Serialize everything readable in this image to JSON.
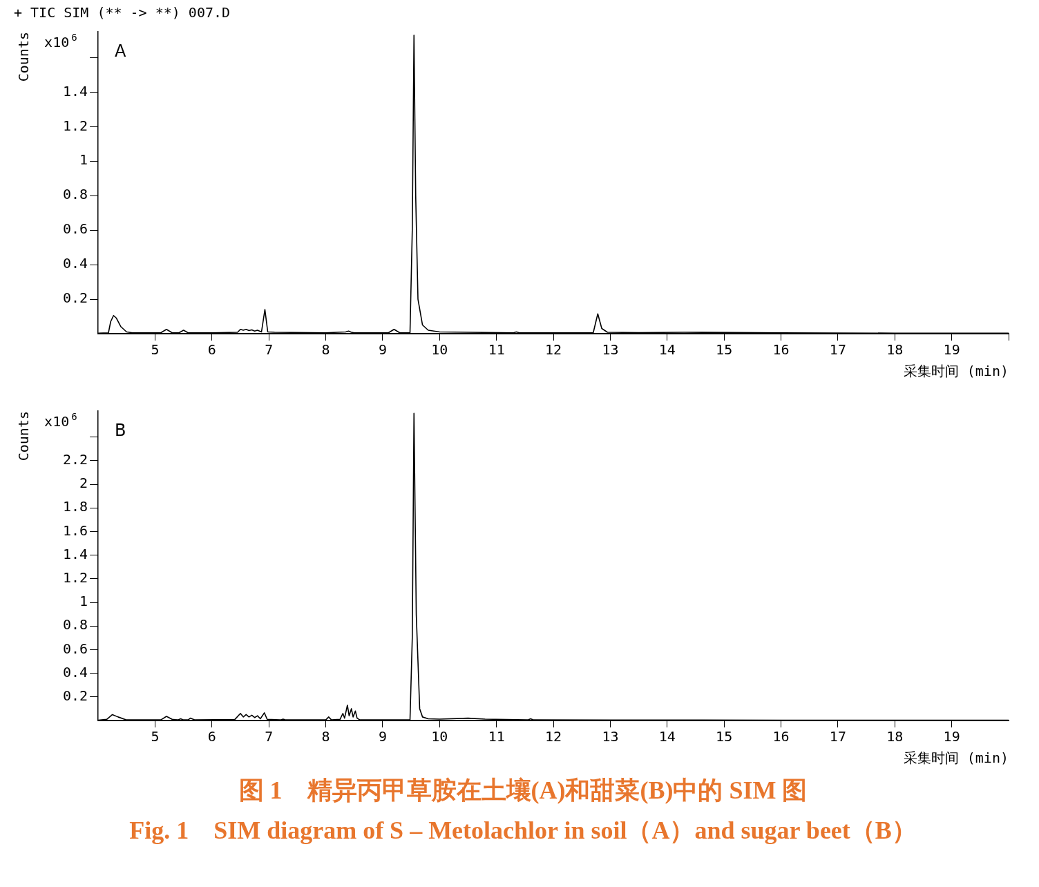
{
  "chart_data": [
    {
      "type": "line",
      "title": "+ TIC SIM (** -> **) 007.D",
      "ylabel": "Counts",
      "xlabel": "采集时间 (min)",
      "color": "#000000",
      "annotations": [
        "A",
        "x10$^{6}$"
      ],
      "x": [
        4.0,
        4.18,
        4.22,
        4.27,
        4.32,
        4.4,
        4.5,
        4.6,
        5.1,
        5.2,
        5.3,
        5.42,
        5.5,
        5.58,
        6.0,
        6.45,
        6.5,
        6.55,
        6.6,
        6.65,
        6.7,
        6.75,
        6.8,
        6.87,
        6.93,
        6.98,
        7.1,
        8.0,
        8.35,
        8.4,
        8.45,
        8.5,
        9.1,
        9.2,
        9.3,
        9.48,
        9.52,
        9.55,
        9.58,
        9.62,
        9.7,
        9.8,
        10.0,
        10.5,
        11.3,
        11.35,
        11.4,
        12.7,
        12.78,
        12.85,
        12.95,
        13.5,
        14.3,
        16,
        18,
        20
      ],
      "values": [
        0.003,
        0.005,
        0.07,
        0.105,
        0.09,
        0.04,
        0.01,
        0.005,
        0.005,
        0.025,
        0.005,
        0.005,
        0.02,
        0.005,
        0.005,
        0.008,
        0.025,
        0.02,
        0.025,
        0.018,
        0.022,
        0.015,
        0.02,
        0.01,
        0.14,
        0.01,
        0.008,
        0.005,
        0.01,
        0.015,
        0.008,
        0.005,
        0.005,
        0.025,
        0.005,
        0.005,
        0.6,
        1.73,
        0.8,
        0.2,
        0.05,
        0.02,
        0.01,
        0.008,
        0.005,
        0.01,
        0.005,
        0.005,
        0.115,
        0.03,
        0.008,
        0.006,
        0.008,
        0.005,
        0.003,
        0.003
      ],
      "xlim": [
        4,
        20
      ],
      "xticks": [
        5,
        6,
        7,
        8,
        9,
        10,
        11,
        12,
        13,
        14,
        15,
        16,
        17,
        18,
        19,
        {
          "value": 20,
          "label": null
        }
      ],
      "ylim": [
        0,
        1.75
      ],
      "yticks": [
        0.2,
        0.4,
        0.6,
        0.8,
        1,
        1.2,
        1.4,
        {
          "value": 1.6,
          "label": null
        }
      ]
    },
    {
      "type": "line",
      "ylabel": "Counts",
      "xlabel": "采集时间 (min)",
      "color": "#000000",
      "annotations": [
        "B",
        "x10$^{6}$",
        "图 1　精异丙甲草胺在土壤(A)和甜菜(B)中的 SIM 图",
        "Fig. 1　SIM diagram of S – Metolachlor in soil（A）and sugar beet（B）"
      ],
      "x": [
        4.0,
        4.15,
        4.25,
        4.35,
        4.5,
        5.1,
        5.2,
        5.3,
        5.4,
        5.45,
        5.5,
        5.58,
        5.62,
        5.7,
        6.4,
        6.5,
        6.55,
        6.6,
        6.65,
        6.7,
        6.75,
        6.8,
        6.85,
        6.92,
        6.97,
        7.2,
        7.25,
        7.3,
        8.0,
        8.05,
        8.1,
        8.25,
        8.3,
        8.33,
        8.38,
        8.41,
        8.45,
        8.48,
        8.52,
        8.55,
        8.6,
        9.48,
        9.52,
        9.55,
        9.59,
        9.65,
        9.7,
        9.8,
        10.0,
        10.5,
        10.8,
        11.55,
        11.6,
        11.65,
        13,
        16,
        20
      ],
      "values": [
        0.003,
        0.01,
        0.05,
        0.03,
        0.005,
        0.005,
        0.035,
        0.01,
        0.005,
        0.015,
        0.005,
        0.005,
        0.02,
        0.005,
        0.008,
        0.06,
        0.03,
        0.05,
        0.03,
        0.045,
        0.025,
        0.04,
        0.015,
        0.065,
        0.01,
        0.005,
        0.012,
        0.005,
        0.005,
        0.03,
        0.005,
        0.01,
        0.06,
        0.02,
        0.13,
        0.04,
        0.1,
        0.03,
        0.08,
        0.02,
        0.005,
        0.005,
        0.7,
        2.6,
        0.9,
        0.1,
        0.03,
        0.015,
        0.012,
        0.02,
        0.012,
        0.005,
        0.015,
        0.005,
        0.004,
        0.003,
        0.003
      ],
      "xlim": [
        4,
        20
      ],
      "xticks": [
        5,
        6,
        7,
        8,
        9,
        10,
        11,
        12,
        13,
        14,
        15,
        16,
        17,
        18,
        19
      ],
      "ylim": [
        0,
        2.62
      ],
      "yticks": [
        0.2,
        0.4,
        0.6,
        0.8,
        1,
        1.2,
        1.4,
        1.6,
        1.8,
        2,
        2.2,
        {
          "value": 2.4,
          "label": null
        }
      ]
    }
  ]
}
